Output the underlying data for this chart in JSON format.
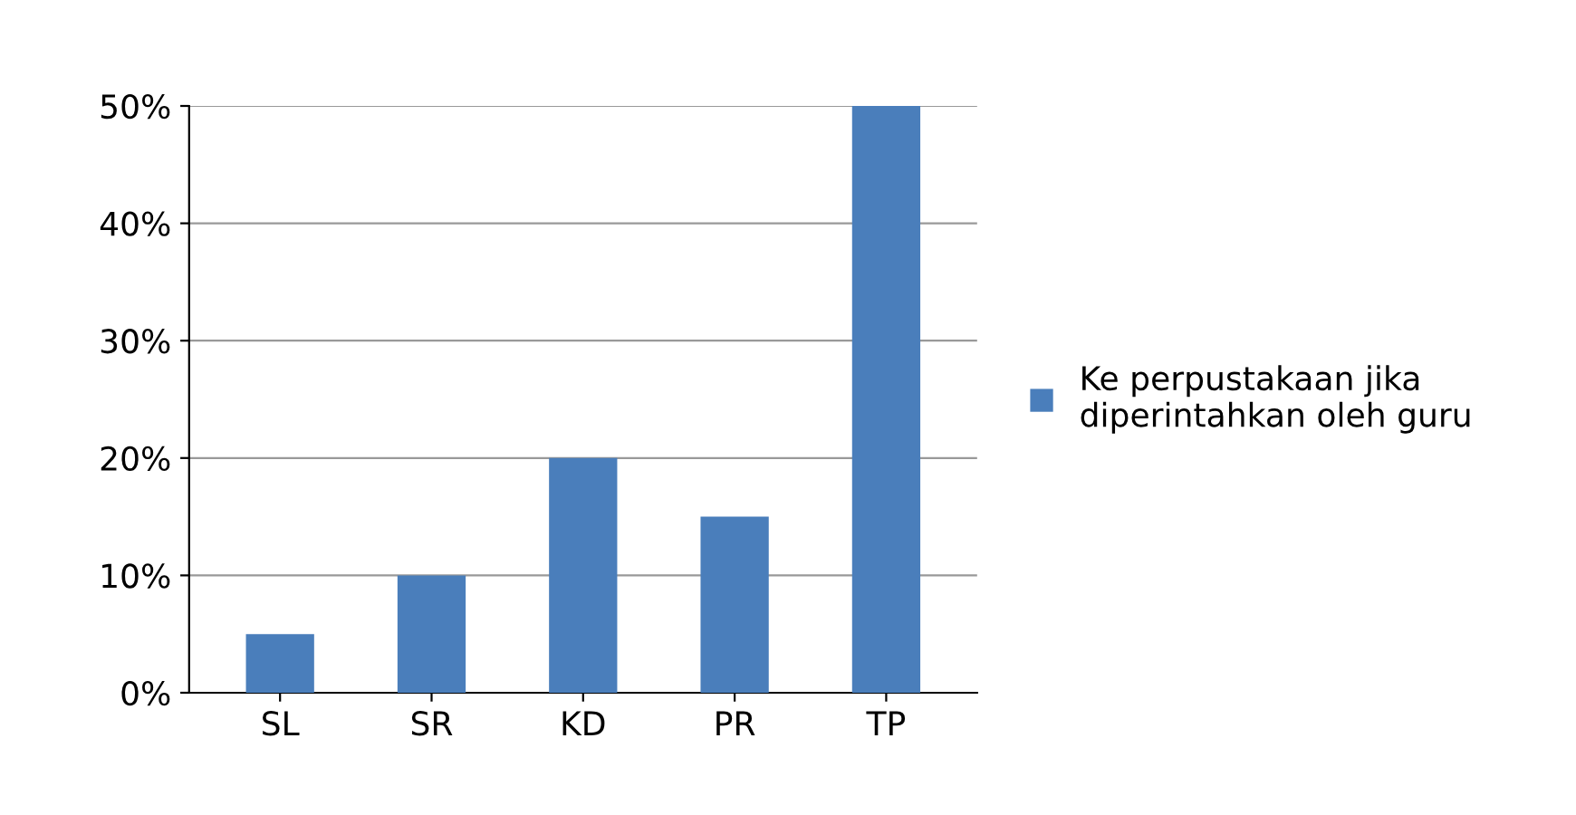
{
  "chart_data": {
    "type": "bar",
    "categories": [
      "SL",
      "SR",
      "KD",
      "PR",
      "TP"
    ],
    "series": [
      {
        "name": "Ke perpustakaan jika diperintahkan oleh guru",
        "color": "#4a7ebb",
        "values": [
          5,
          10,
          20,
          15,
          50
        ]
      }
    ],
    "ylim": [
      0,
      50
    ],
    "yticks": [
      {
        "value": 0,
        "label": "0%"
      },
      {
        "value": 10,
        "label": "10%"
      },
      {
        "value": 20,
        "label": "20%"
      },
      {
        "value": 30,
        "label": "30%"
      },
      {
        "value": 40,
        "label": "40%"
      },
      {
        "value": 50,
        "label": "50%"
      }
    ],
    "grid": "y",
    "legend": "right"
  }
}
